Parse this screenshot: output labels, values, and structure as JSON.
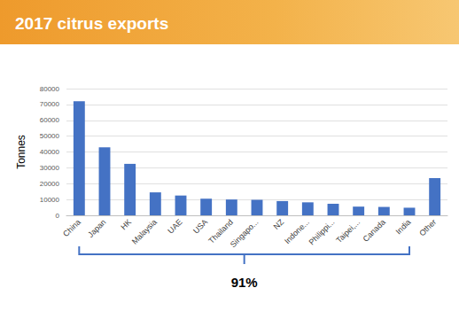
{
  "chart_data": {
    "type": "bar",
    "title": "2017 citrus exports",
    "ylabel": "Tonnes",
    "categories": [
      "China",
      "Japan",
      "HK",
      "Malaysia",
      "UAE",
      "USA",
      "Thailand",
      "Singapo...",
      "NZ",
      "Indone...",
      "Philippi...",
      "Taipei,...",
      "Canada",
      "India",
      "Other"
    ],
    "values": [
      72000,
      43000,
      32500,
      14500,
      12500,
      10500,
      10000,
      9800,
      9000,
      8200,
      7300,
      5500,
      5300,
      4800,
      23500
    ],
    "color": "#4472c4",
    "ylim": [
      0,
      80000
    ],
    "yticks": [
      0,
      10000,
      20000,
      30000,
      40000,
      50000,
      60000,
      70000,
      80000
    ],
    "grid": true,
    "annotation": {
      "text": "91%",
      "from": "China",
      "to": "India"
    }
  }
}
